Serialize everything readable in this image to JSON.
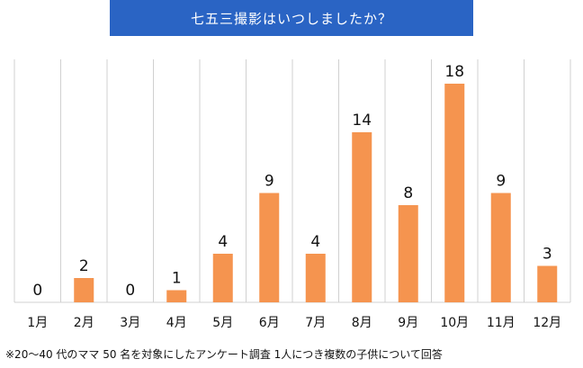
{
  "title": "七五三撮影はいつしましたか？",
  "footnote": "※20〜40 代のママ 50 名を対象にしたアンケート調査 1人につき複数の子供について回答",
  "colors": {
    "title_bg": "#2a64c4",
    "bar": "#f5944f",
    "grid": "#d0d0d0"
  },
  "chart_data": {
    "type": "bar",
    "title": "七五三撮影はいつしましたか？",
    "categories": [
      "1月",
      "2月",
      "3月",
      "4月",
      "5月",
      "6月",
      "7月",
      "8月",
      "9月",
      "10月",
      "11月",
      "12月"
    ],
    "values": [
      0,
      2,
      0,
      1,
      4,
      9,
      4,
      14,
      8,
      18,
      9,
      3
    ],
    "data_labels": [
      "0",
      "2",
      "0",
      "1",
      "4",
      "9",
      "4",
      "14",
      "8",
      "18",
      "9",
      "3"
    ],
    "xlabel": "",
    "ylabel": "",
    "ylim": [
      0,
      20
    ],
    "grid": "vertical",
    "legend": "none"
  }
}
